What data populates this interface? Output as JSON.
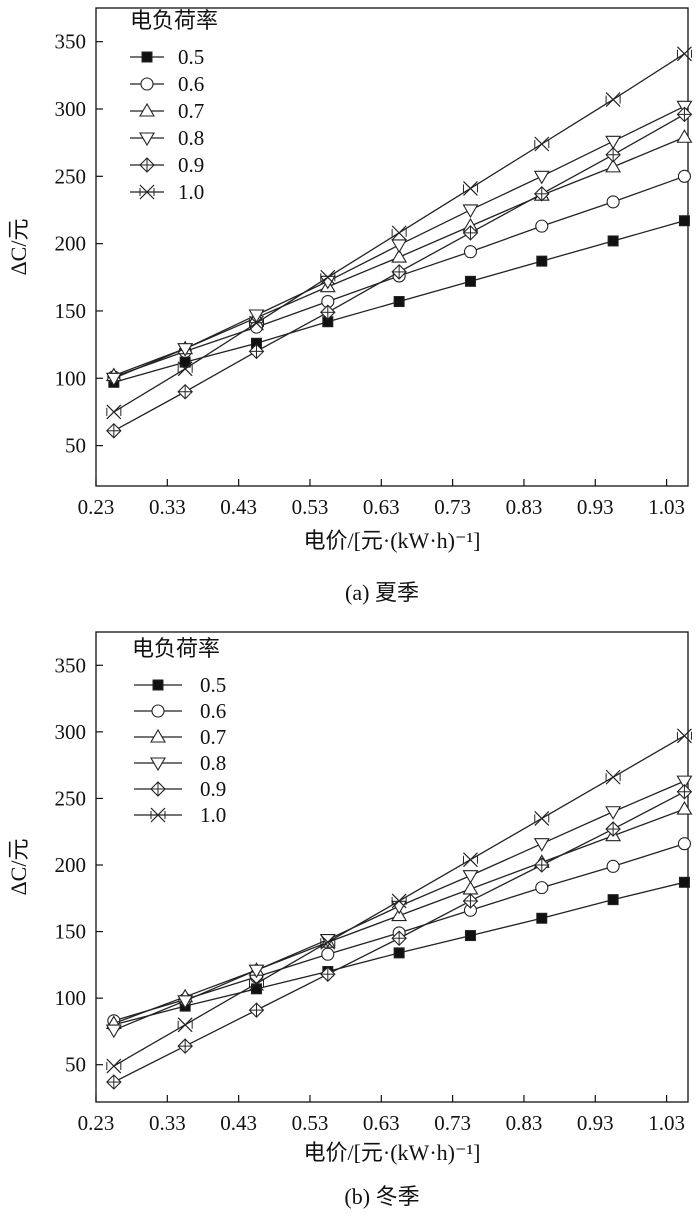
{
  "chart_data": [
    {
      "type": "line",
      "caption": "(a) 夏季",
      "xlabel": "电价/[元·(kW·h)⁻¹]",
      "ylabel": "ΔC/元",
      "xlim": [
        0.23,
        1.06
      ],
      "ylim": [
        20,
        375
      ],
      "xticks": [
        0.23,
        0.33,
        0.43,
        0.53,
        0.63,
        0.73,
        0.83,
        0.93,
        1.03
      ],
      "xtick_labels": [
        "0.23",
        "0.33",
        "0.43",
        "0.53",
        "0.63",
        "0.73",
        "0.83",
        "0.93",
        "1.03"
      ],
      "yticks": [
        50,
        100,
        150,
        200,
        250,
        300,
        350
      ],
      "ytick_labels": [
        "50",
        "100",
        "150",
        "200",
        "250",
        "300",
        "350"
      ],
      "legend_title": "电负荷率",
      "legend_position": "top-left",
      "grid": false,
      "x": [
        0.255,
        0.355,
        0.455,
        0.555,
        0.655,
        0.755,
        0.855,
        0.955,
        1.055
      ],
      "series": [
        {
          "name": "0.5",
          "marker": "square-filled",
          "values": [
            97,
            112,
            126,
            142,
            157,
            172,
            187,
            202,
            217
          ]
        },
        {
          "name": "0.6",
          "marker": "circle",
          "values": [
            101,
            120,
            138,
            157,
            176,
            194,
            213,
            231,
            250
          ]
        },
        {
          "name": "0.7",
          "marker": "triangle-up",
          "values": [
            102,
            122,
            145,
            168,
            190,
            213,
            236,
            257,
            279
          ]
        },
        {
          "name": "0.8",
          "marker": "triangle-down",
          "values": [
            100,
            122,
            147,
            172,
            199,
            225,
            250,
            276,
            302
          ]
        },
        {
          "name": "0.9",
          "marker": "diamond-cross",
          "values": [
            61,
            90,
            120,
            149,
            179,
            208,
            237,
            266,
            296
          ]
        },
        {
          "name": "1.0",
          "marker": "x-cross",
          "values": [
            75,
            107,
            141,
            175,
            208,
            241,
            274,
            307,
            341
          ]
        }
      ]
    },
    {
      "type": "line",
      "caption": "(b) 冬季",
      "xlabel": "电价/[元·(kW·h)⁻¹]",
      "ylabel": "ΔC/元",
      "xlim": [
        0.23,
        1.06
      ],
      "ylim": [
        22,
        375
      ],
      "xticks": [
        0.23,
        0.33,
        0.43,
        0.53,
        0.63,
        0.73,
        0.83,
        0.93,
        1.03
      ],
      "xtick_labels": [
        "0.23",
        "0.33",
        "0.43",
        "0.53",
        "0.63",
        "0.73",
        "0.83",
        "0.93",
        "1.03"
      ],
      "yticks": [
        50,
        100,
        150,
        200,
        250,
        300,
        350
      ],
      "ytick_labels": [
        "50",
        "100",
        "150",
        "200",
        "250",
        "300",
        "350"
      ],
      "legend_title": "电负荷率",
      "legend_position": "top-left",
      "grid": false,
      "x": [
        0.255,
        0.355,
        0.455,
        0.555,
        0.655,
        0.755,
        0.855,
        0.955,
        1.055
      ],
      "series": [
        {
          "name": "0.5",
          "marker": "square-filled",
          "values": [
            80,
            94,
            107,
            120,
            134,
            147,
            160,
            174,
            187
          ]
        },
        {
          "name": "0.6",
          "marker": "circle",
          "values": [
            83,
            99,
            116,
            133,
            149,
            166,
            183,
            199,
            216
          ]
        },
        {
          "name": "0.7",
          "marker": "triangle-up",
          "values": [
            81,
            101,
            121,
            142,
            162,
            182,
            202,
            222,
            242
          ]
        },
        {
          "name": "0.8",
          "marker": "triangle-down",
          "values": [
            76,
            98,
            121,
            144,
            169,
            192,
            216,
            240,
            263
          ]
        },
        {
          "name": "0.9",
          "marker": "diamond-cross",
          "values": [
            37,
            64,
            91,
            118,
            145,
            173,
            200,
            227,
            255
          ]
        },
        {
          "name": "1.0",
          "marker": "x-cross",
          "values": [
            49,
            80,
            111,
            142,
            173,
            204,
            235,
            266,
            297
          ]
        }
      ]
    }
  ]
}
